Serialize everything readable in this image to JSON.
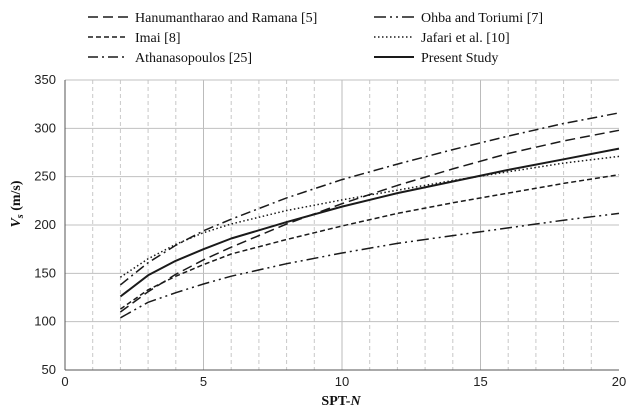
{
  "chart_data": {
    "type": "line",
    "xlabel_main": "SPT-",
    "xlabel_italic": "N",
    "ylabel_sym": "V",
    "ylabel_sub": "s",
    "ylabel_unit": " (m/s)",
    "xlim": [
      0,
      20
    ],
    "ylim": [
      50,
      350
    ],
    "xticks": [
      "0",
      "5",
      "10",
      "15",
      "20"
    ],
    "yticks": [
      "50",
      "100",
      "150",
      "200",
      "250",
      "300",
      "350"
    ],
    "grid": true,
    "legend_position": "top",
    "series": [
      {
        "name": "Hanumantharao and Ramana [5]",
        "style": "dashed",
        "x": [
          2,
          3,
          4,
          5,
          6,
          8,
          10,
          12,
          14,
          16,
          18,
          20
        ],
        "y": [
          110,
          131,
          149,
          164,
          177,
          201,
          222,
          241,
          258,
          274,
          287,
          298
        ]
      },
      {
        "name": "Ohba and Toriumi [7]",
        "style": "dash-dot-dot",
        "x": [
          2,
          3,
          4,
          5,
          6,
          8,
          10,
          12,
          14,
          16,
          18,
          20
        ],
        "y": [
          104,
          120,
          130,
          139,
          147,
          160,
          171,
          181,
          189,
          197,
          205,
          212
        ]
      },
      {
        "name": "Imai [8]",
        "style": "short-dash",
        "x": [
          2,
          3,
          4,
          5,
          6,
          8,
          10,
          12,
          14,
          16,
          18,
          20
        ],
        "y": [
          113,
          133,
          147,
          159,
          170,
          185,
          199,
          212,
          223,
          233,
          243,
          252
        ]
      },
      {
        "name": "Jafari et al. [10]",
        "style": "dotted",
        "x": [
          2,
          3,
          4,
          5,
          6,
          8,
          10,
          12,
          14,
          16,
          18,
          20
        ],
        "y": [
          146,
          165,
          180,
          192,
          201,
          215,
          226,
          236,
          246,
          255,
          264,
          271
        ]
      },
      {
        "name": "Athanasopoulos [25]",
        "style": "dash-dot",
        "x": [
          2,
          3,
          4,
          5,
          6,
          8,
          10,
          12,
          14,
          16,
          18,
          20
        ],
        "y": [
          138,
          161,
          179,
          194,
          206,
          228,
          247,
          263,
          278,
          292,
          305,
          316
        ]
      },
      {
        "name": "Present Study",
        "style": "solid",
        "x": [
          2,
          3,
          4,
          5,
          6,
          8,
          10,
          12,
          14,
          16,
          18,
          20
        ],
        "y": [
          126,
          148,
          163,
          175,
          186,
          203,
          219,
          233,
          245,
          257,
          268,
          279
        ]
      }
    ]
  }
}
